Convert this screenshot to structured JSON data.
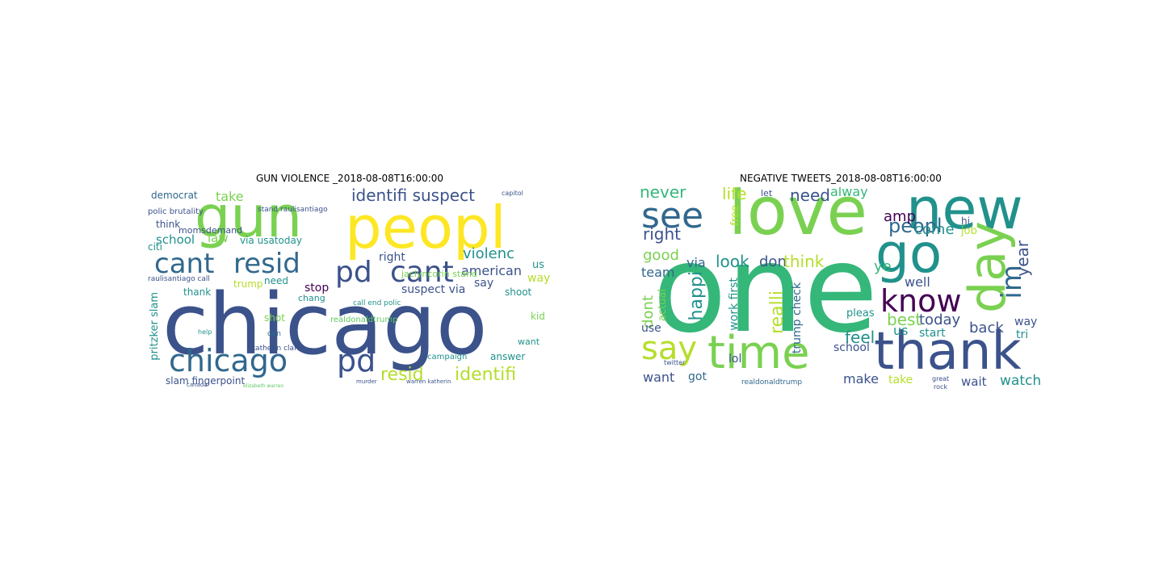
{
  "colors": {
    "palette": [
      "#440154",
      "#3b528b",
      "#21918c",
      "#5ec962",
      "#fde725"
    ]
  },
  "panels": [
    {
      "title": "GUN VIOLENCE _2018-08-08T16:00:00",
      "words": [
        {
          "text": "chicago",
          "c": "#3b528b"
        },
        {
          "text": "gun",
          "c": "#7ad151"
        },
        {
          "text": "peopl",
          "c": "#fde725"
        },
        {
          "text": "cant",
          "c": "#31688e"
        },
        {
          "text": "resid",
          "c": "#31688e"
        },
        {
          "text": "pd",
          "c": "#3b528b"
        },
        {
          "text": "cant",
          "c": "#3b528b"
        },
        {
          "text": "chicago",
          "c": "#31688e"
        },
        {
          "text": "pd",
          "c": "#3b528b"
        },
        {
          "text": "identifi suspect",
          "c": "#3b528b"
        },
        {
          "text": "resid",
          "c": "#b5de2b"
        },
        {
          "text": "identifi",
          "c": "#b5de2b"
        },
        {
          "text": "violenc",
          "c": "#21918c"
        },
        {
          "text": "american",
          "c": "#3b528b"
        },
        {
          "text": "right",
          "c": "#3b528b"
        },
        {
          "text": "suspect via",
          "c": "#3b528b"
        },
        {
          "text": "school",
          "c": "#21918c"
        },
        {
          "text": "law",
          "c": "#7ad151"
        },
        {
          "text": "take",
          "c": "#7ad151"
        },
        {
          "text": "citi",
          "c": "#21918c"
        },
        {
          "text": "democrat",
          "c": "#31688e"
        },
        {
          "text": "think",
          "c": "#3b528b"
        },
        {
          "text": "momsdemand",
          "c": "#3b528b"
        },
        {
          "text": "via usatoday",
          "c": "#21918c"
        },
        {
          "text": "stop",
          "c": "#440154"
        },
        {
          "text": "trump",
          "c": "#b5de2b"
        },
        {
          "text": "thank",
          "c": "#21918c"
        },
        {
          "text": "chang",
          "c": "#21918c"
        },
        {
          "text": "say",
          "c": "#3b528b"
        },
        {
          "text": "us",
          "c": "#21918c"
        },
        {
          "text": "way",
          "c": "#b5de2b"
        },
        {
          "text": "kid",
          "c": "#7ad151"
        },
        {
          "text": "shoot",
          "c": "#21918c"
        },
        {
          "text": "want",
          "c": "#21918c"
        },
        {
          "text": "answer",
          "c": "#21918c"
        },
        {
          "text": "slam fingerpoint",
          "c": "#3b528b"
        },
        {
          "text": "pritzker slam",
          "c": "#21918c"
        },
        {
          "text": "raulisantiago call",
          "c": "#3b528b"
        },
        {
          "text": "polic brutality",
          "c": "#3b528b"
        },
        {
          "text": "stand raulisantiago",
          "c": "#3b528b"
        },
        {
          "text": "jaclyncorin stand",
          "c": "#7ad151"
        },
        {
          "text": "call end polic",
          "c": "#21918c"
        },
        {
          "text": "katherin clark",
          "c": "#3b528b"
        },
        {
          "text": "shot",
          "c": "#7ad151"
        },
        {
          "text": "need",
          "c": "#21918c"
        },
        {
          "text": "realdonaldtrump",
          "c": "#5ec962"
        },
        {
          "text": "campaign",
          "c": "#21918c"
        },
        {
          "text": "warren katherin",
          "c": "#3b528b"
        },
        {
          "text": "don",
          "c": "#31688e"
        },
        {
          "text": "help",
          "c": "#21918c"
        },
        {
          "text": "capitol",
          "c": "#3b528b"
        },
        {
          "text": "elizabeth warren",
          "c": "#5ec962"
        },
        {
          "text": "murder",
          "c": "#3b528b"
        },
        {
          "text": "canada",
          "c": "#3b528b"
        }
      ]
    },
    {
      "title": "NEGATIVE TWEETS_2018-08-08T16:00:00",
      "words": [
        {
          "text": "one",
          "c": "#35b779"
        },
        {
          "text": "love",
          "c": "#7ad151"
        },
        {
          "text": "new",
          "c": "#21918c"
        },
        {
          "text": "go",
          "c": "#21918c"
        },
        {
          "text": "day",
          "c": "#7ad151"
        },
        {
          "text": "thank",
          "c": "#3b528b"
        },
        {
          "text": "time",
          "c": "#7ad151"
        },
        {
          "text": "say",
          "c": "#b5de2b"
        },
        {
          "text": "see",
          "c": "#31688e"
        },
        {
          "text": "know",
          "c": "#440154"
        },
        {
          "text": "im",
          "c": "#31688e"
        },
        {
          "text": "peopl",
          "c": "#31688e"
        },
        {
          "text": "never",
          "c": "#35b779"
        },
        {
          "text": "life",
          "c": "#b5de2b"
        },
        {
          "text": "need",
          "c": "#3b528b"
        },
        {
          "text": "alway",
          "c": "#35b779"
        },
        {
          "text": "right",
          "c": "#3b528b"
        },
        {
          "text": "amp",
          "c": "#440154"
        },
        {
          "text": "come",
          "c": "#21918c"
        },
        {
          "text": "job",
          "c": "#b5de2b"
        },
        {
          "text": "year",
          "c": "#3b528b"
        },
        {
          "text": "good",
          "c": "#7ad151"
        },
        {
          "text": "via",
          "c": "#31688e"
        },
        {
          "text": "look",
          "c": "#21918c"
        },
        {
          "text": "don",
          "c": "#3b528b"
        },
        {
          "text": "think",
          "c": "#b5de2b"
        },
        {
          "text": "ye",
          "c": "#35b779"
        },
        {
          "text": "well",
          "c": "#3b528b"
        },
        {
          "text": "team",
          "c": "#31688e"
        },
        {
          "text": "happi",
          "c": "#21918c"
        },
        {
          "text": "realli",
          "c": "#b5de2b"
        },
        {
          "text": "feel",
          "c": "#21918c"
        },
        {
          "text": "best",
          "c": "#7ad151"
        },
        {
          "text": "today",
          "c": "#3b528b"
        },
        {
          "text": "back",
          "c": "#3b528b"
        },
        {
          "text": "us",
          "c": "#21918c"
        },
        {
          "text": "start",
          "c": "#21918c"
        },
        {
          "text": "way",
          "c": "#3b528b"
        },
        {
          "text": "tri",
          "c": "#21918c"
        },
        {
          "text": "dont",
          "c": "#7ad151"
        },
        {
          "text": "actual",
          "c": "#7ad151"
        },
        {
          "text": "use",
          "c": "#3b528b"
        },
        {
          "text": "lol",
          "c": "#3b528b"
        },
        {
          "text": "work first",
          "c": "#21918c"
        },
        {
          "text": "trump check",
          "c": "#31688e"
        },
        {
          "text": "pleas",
          "c": "#21918c"
        },
        {
          "text": "school",
          "c": "#3b528b"
        },
        {
          "text": "make",
          "c": "#3b528b"
        },
        {
          "text": "take",
          "c": "#b5de2b"
        },
        {
          "text": "wait",
          "c": "#3b528b"
        },
        {
          "text": "watch",
          "c": "#21918c"
        },
        {
          "text": "want",
          "c": "#3b528b"
        },
        {
          "text": "got",
          "c": "#31688e"
        },
        {
          "text": "let",
          "c": "#3b528b"
        },
        {
          "text": "free",
          "c": "#b5de2b"
        },
        {
          "text": "hi",
          "c": "#3b528b"
        },
        {
          "text": "realdonaldtrump",
          "c": "#31688e"
        },
        {
          "text": "great",
          "c": "#3b528b"
        },
        {
          "text": "rock",
          "c": "#3b528b"
        },
        {
          "text": "twitter",
          "c": "#3b528b"
        }
      ]
    }
  ]
}
